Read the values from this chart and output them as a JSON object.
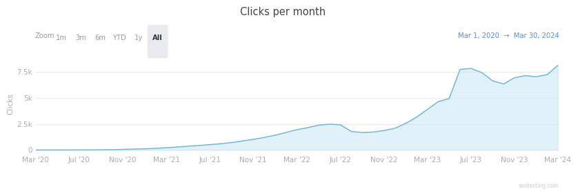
{
  "title": "Clicks per month",
  "ylabel": "Clicks",
  "date_range_text": "Mar 1, 2020  →  Mar 30, 2024",
  "zoom_label": "Zoom",
  "zoom_buttons": [
    "1m",
    "3m",
    "6m",
    "YTD",
    "1y",
    "All"
  ],
  "active_button": "All",
  "line_color": "#6ab4d4",
  "fill_color": "#c8e6f5",
  "date_range_color": "#5b8dd9",
  "background_color": "#ffffff",
  "grid_color": "#e8e8e8",
  "ytick_labels": [
    "0",
    "2.5k",
    "5k",
    "7.5k"
  ],
  "ytick_values": [
    0,
    2500,
    5000,
    7500
  ],
  "ylim": [
    -300,
    9200
  ],
  "xtick_labels": [
    "Mar '20",
    "Jul '20",
    "Nov '20",
    "Mar '21",
    "Jul '21",
    "Nov '21",
    "Mar '22",
    "Jul '22",
    "Nov '22",
    "Mar '23",
    "Jul '23",
    "Nov '23",
    "Mar '24"
  ],
  "watermark": "seotesting.com",
  "x_values": [
    0,
    1,
    2,
    3,
    4,
    5,
    6,
    7,
    8,
    9,
    10,
    11,
    12,
    13,
    14,
    15,
    16,
    17,
    18,
    19,
    20,
    21,
    22,
    23,
    24,
    25,
    26,
    27,
    28,
    29,
    30,
    31,
    32,
    33,
    34,
    35,
    36,
    37,
    38,
    39,
    40,
    41,
    42,
    43,
    44,
    45,
    46,
    47,
    48
  ],
  "y_values": [
    0,
    0,
    0,
    0,
    5,
    10,
    15,
    25,
    50,
    80,
    110,
    150,
    210,
    280,
    360,
    430,
    510,
    600,
    710,
    860,
    1020,
    1200,
    1420,
    1680,
    1950,
    2150,
    2380,
    2480,
    2420,
    1780,
    1680,
    1720,
    1870,
    2080,
    2550,
    3150,
    3900,
    4650,
    4950,
    7750,
    7850,
    7450,
    6650,
    6350,
    6950,
    7150,
    7050,
    7250,
    8150
  ]
}
